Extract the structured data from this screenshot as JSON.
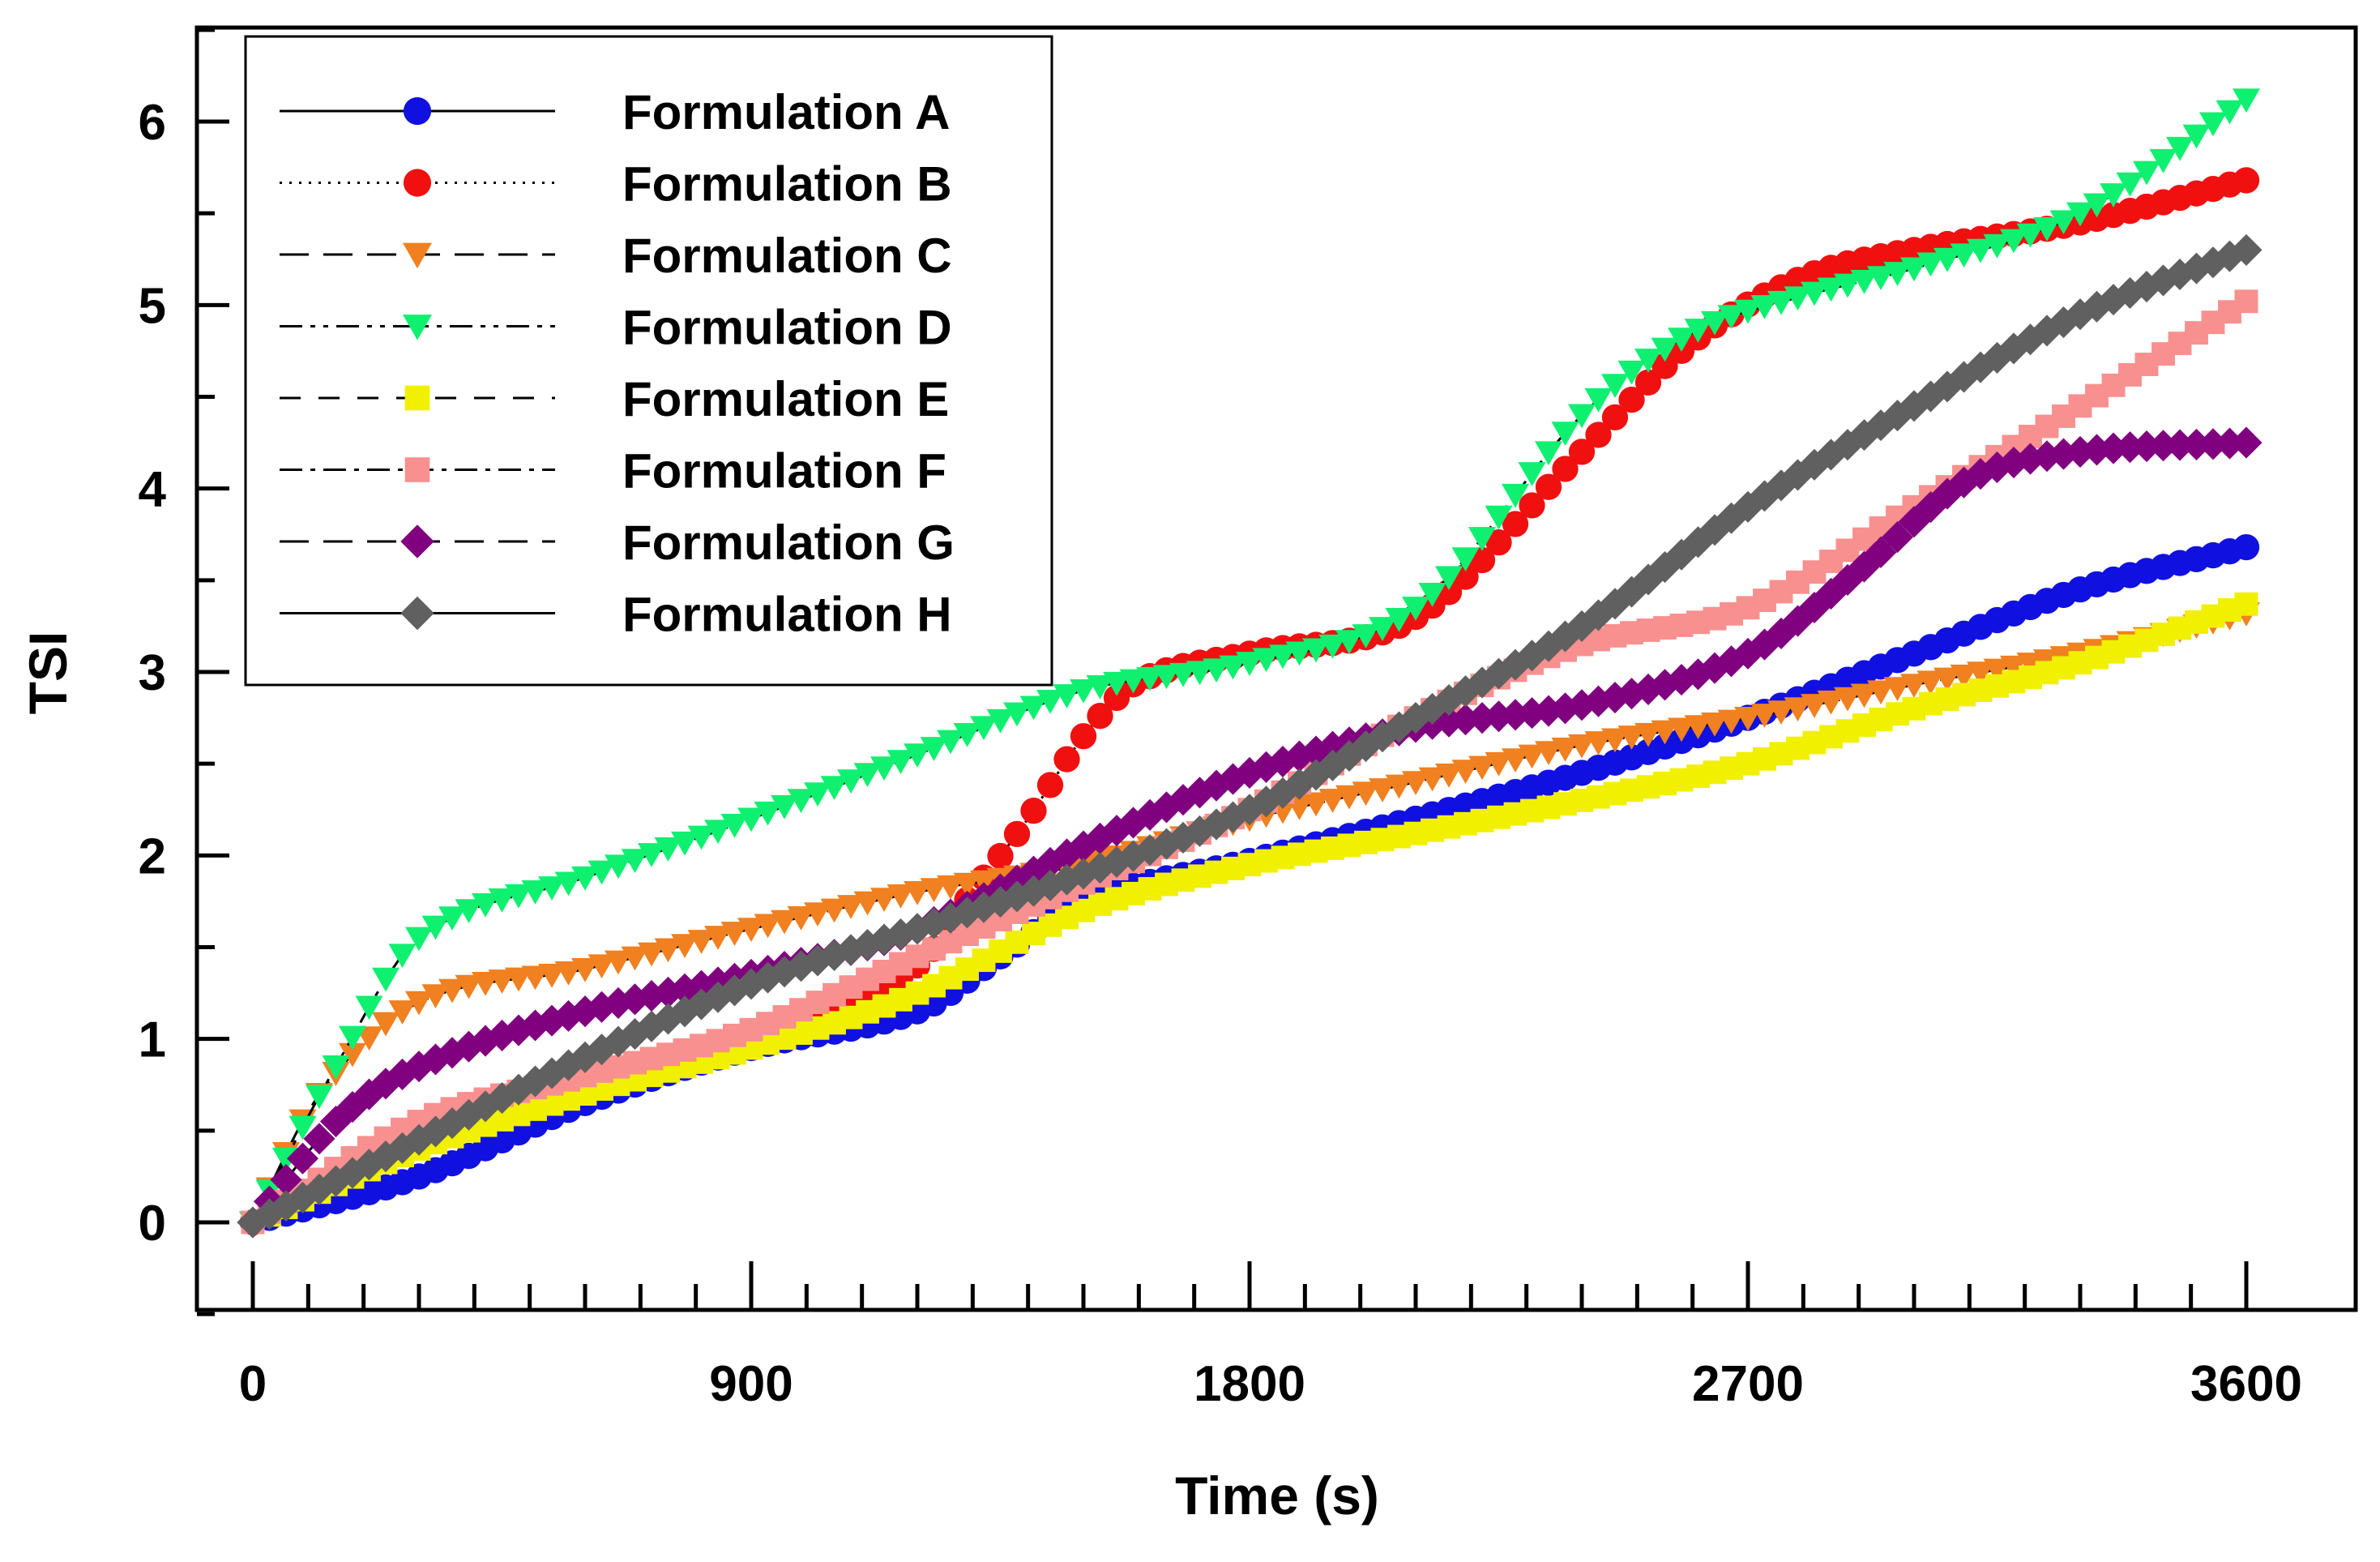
{
  "chart_data": {
    "type": "line",
    "title": "",
    "xlabel": "Time (s)",
    "ylabel": "TSI",
    "xlim": [
      -100,
      3760
    ],
    "ylim": [
      -0.5,
      6.5
    ],
    "xticks": [
      0,
      900,
      1800,
      2700,
      3600
    ],
    "yticks": [
      0,
      1,
      2,
      3,
      4,
      5,
      6
    ],
    "xtick_labels": [
      "0",
      "900",
      "1800",
      "2700",
      "3600"
    ],
    "ytick_labels": [
      "0",
      "1",
      "2",
      "3",
      "4",
      "5",
      "6"
    ],
    "legend_position": "top-left",
    "marker_interval_s": 30,
    "series": [
      {
        "name": "Formulation A",
        "color": "#1010e0",
        "marker": "circle",
        "line": "solid",
        "x": [
          0,
          300,
          600,
          900,
          1200,
          1350,
          1500,
          1800,
          2100,
          2400,
          2700,
          3000,
          3300,
          3600
        ],
        "y": [
          0,
          0.25,
          0.65,
          0.95,
          1.15,
          1.45,
          1.75,
          1.97,
          2.2,
          2.45,
          2.75,
          3.1,
          3.45,
          3.68
        ]
      },
      {
        "name": "Formulation B",
        "color": "#f01010",
        "marker": "circle",
        "line": "dotted",
        "x": [
          0,
          300,
          600,
          900,
          1200,
          1300,
          1400,
          1500,
          1600,
          1800,
          2100,
          2400,
          2600,
          2800,
          3000,
          3300,
          3600
        ],
        "y": [
          0,
          0.45,
          0.75,
          1.0,
          1.4,
          1.8,
          2.2,
          2.65,
          2.95,
          3.1,
          3.3,
          4.2,
          4.8,
          5.15,
          5.3,
          5.45,
          5.68
        ]
      },
      {
        "name": "Formulation C",
        "color": "#f08020",
        "marker": "triangle-down",
        "line": "long-dash",
        "x": [
          0,
          120,
          300,
          600,
          900,
          1200,
          1500,
          1800,
          2100,
          2400,
          2700,
          3000,
          3300,
          3600
        ],
        "y": [
          0,
          0.7,
          1.2,
          1.38,
          1.6,
          1.8,
          1.95,
          2.2,
          2.4,
          2.6,
          2.75,
          2.93,
          3.1,
          3.32
        ]
      },
      {
        "name": "Formulation D",
        "color": "#10f070",
        "marker": "triangle-down",
        "line": "dash-dot-dot",
        "x": [
          0,
          150,
          300,
          600,
          900,
          1200,
          1500,
          1800,
          2100,
          2400,
          2600,
          2800,
          3000,
          3300,
          3600
        ],
        "y": [
          0,
          0.85,
          1.55,
          1.88,
          2.2,
          2.55,
          2.9,
          3.05,
          3.35,
          4.4,
          4.85,
          5.05,
          5.2,
          5.5,
          6.12
        ]
      },
      {
        "name": "Formulation E",
        "color": "#f0f000",
        "marker": "square",
        "line": "dash",
        "x": [
          0,
          300,
          600,
          900,
          1200,
          1500,
          1800,
          2100,
          2400,
          2700,
          3000,
          3300,
          3600
        ],
        "y": [
          0,
          0.4,
          0.7,
          0.95,
          1.25,
          1.7,
          1.95,
          2.12,
          2.3,
          2.5,
          2.8,
          3.05,
          3.37
        ]
      },
      {
        "name": "Formulation F",
        "color": "#f89090",
        "marker": "square",
        "line": "dash-dot",
        "x": [
          0,
          300,
          600,
          900,
          1200,
          1500,
          1800,
          2100,
          2400,
          2700,
          3000,
          3300,
          3600
        ],
        "y": [
          0,
          0.55,
          0.8,
          1.05,
          1.45,
          1.85,
          2.25,
          2.75,
          3.15,
          3.35,
          3.9,
          4.45,
          5.02
        ]
      },
      {
        "name": "Formulation G",
        "color": "#800080",
        "marker": "diamond",
        "line": "long-dash",
        "x": [
          0,
          150,
          300,
          600,
          900,
          1200,
          1500,
          1800,
          2100,
          2400,
          2700,
          2900,
          3100,
          3300,
          3600
        ],
        "y": [
          0,
          0.55,
          0.85,
          1.15,
          1.35,
          1.6,
          2.05,
          2.45,
          2.7,
          2.82,
          3.1,
          3.55,
          4.05,
          4.2,
          4.25
        ]
      },
      {
        "name": "Formulation H",
        "color": "#606060",
        "marker": "diamond",
        "line": "solid",
        "x": [
          0,
          300,
          600,
          900,
          1200,
          1500,
          1800,
          2100,
          2400,
          2700,
          3000,
          3300,
          3600
        ],
        "y": [
          0,
          0.45,
          0.9,
          1.3,
          1.6,
          1.9,
          2.25,
          2.75,
          3.25,
          3.9,
          4.45,
          4.95,
          5.3
        ]
      }
    ]
  }
}
